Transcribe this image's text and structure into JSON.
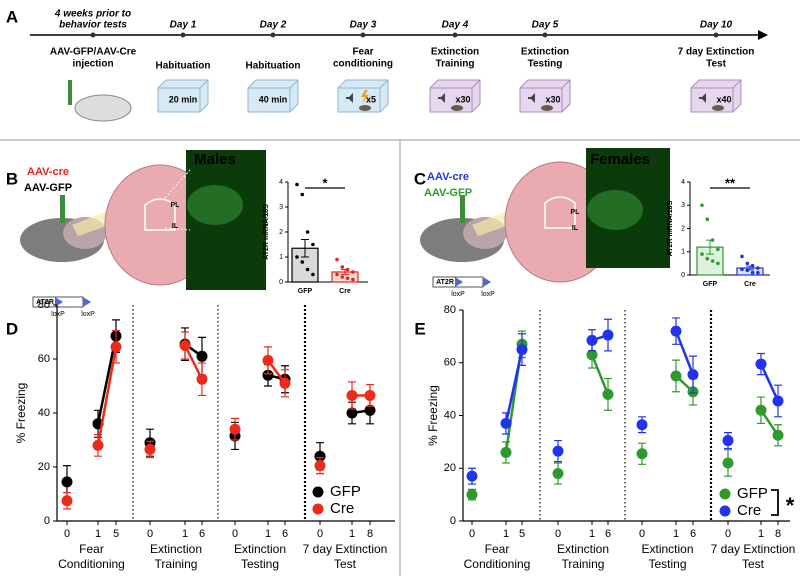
{
  "panel_labels": [
    "A",
    "B",
    "C",
    "D",
    "E"
  ],
  "timeline": {
    "events": [
      {
        "day": [
          "4 weeks prior to",
          "behavior tests"
        ],
        "label": [
          "AAV-GFP/AAV-Cre",
          "injection"
        ]
      },
      {
        "day": [
          "Day 1"
        ],
        "label": [
          "Habituation"
        ],
        "box": "20 min"
      },
      {
        "day": [
          "Day 2"
        ],
        "label": [
          "Habituation"
        ],
        "box": "40 min"
      },
      {
        "day": [
          "Day 3"
        ],
        "label": [
          "Fear",
          "conditioning"
        ],
        "box": "x5"
      },
      {
        "day": [
          "Day 4"
        ],
        "label": [
          "Extinction",
          "Training"
        ],
        "box": "x30"
      },
      {
        "day": [
          "Day 5"
        ],
        "label": [
          "Extinction",
          "Testing"
        ],
        "box": "x30"
      },
      {
        "day": [
          "Day 10"
        ],
        "label": [
          "7 day Extinction",
          "Test"
        ],
        "box": "x40"
      }
    ]
  },
  "sections": [
    {
      "title": "Males",
      "legend": [
        {
          "text": "AAV-cre",
          "color": "#e8221c"
        },
        {
          "text": "AAV-GFP",
          "color": "#000000"
        }
      ],
      "regions": [
        "PL",
        "IL"
      ],
      "construct": [
        "AT2R",
        "loxP",
        "loxP"
      ]
    },
    {
      "title": "Females",
      "legend": [
        {
          "text": "AAV-cre",
          "color": "#2233dd"
        },
        {
          "text": "AAV-GFP",
          "color": "#2e9a2e"
        }
      ],
      "regions": [
        "PL",
        "IL"
      ],
      "construct": [
        "AT2R",
        "loxP",
        "loxP"
      ]
    }
  ],
  "chart_data": [
    {
      "type": "bar",
      "ylabel": "AT2R mRNA/18S",
      "categories": [
        "GFP",
        "Cre"
      ],
      "values": [
        1.35,
        0.4
      ],
      "errors": [
        0.35,
        0.1
      ],
      "colors": [
        "#000000",
        "#e8221c"
      ],
      "points": [
        [
          3.9,
          3.5,
          2.0,
          1.5,
          1.0,
          0.8,
          0.5,
          0.3
        ],
        [
          0.9,
          0.6,
          0.5,
          0.4,
          0.3,
          0.2,
          0.15,
          0.1
        ]
      ],
      "ylim": [
        0,
        4
      ],
      "yticks": [
        0,
        1,
        2,
        3,
        4
      ],
      "annotation": "*"
    },
    {
      "type": "bar",
      "ylabel": "AT2R mRNA/18S",
      "categories": [
        "GFP",
        "Cre"
      ],
      "values": [
        1.2,
        0.3
      ],
      "errors": [
        0.3,
        0.08
      ],
      "colors": [
        "#2e9a2e",
        "#2233dd"
      ],
      "points": [
        [
          3.0,
          2.4,
          1.5,
          1.1,
          0.9,
          0.7,
          0.6,
          0.5
        ],
        [
          0.8,
          0.5,
          0.4,
          0.3,
          0.25,
          0.2,
          0.1,
          0.1
        ]
      ],
      "ylim": [
        0,
        4
      ],
      "yticks": [
        0,
        1,
        2,
        3,
        4
      ],
      "annotation": "**"
    },
    {
      "type": "line",
      "ylabel": "% Freezing",
      "ylim": [
        0,
        80
      ],
      "yticks": [
        0,
        20,
        40,
        60,
        80
      ],
      "legend": "lower right",
      "groups": [
        {
          "label": [
            "Fear",
            "Conditioning"
          ],
          "categories": [
            0,
            1,
            5
          ]
        },
        {
          "label": [
            "Extinction",
            "Training"
          ],
          "categories": [
            0,
            1,
            6
          ]
        },
        {
          "label": [
            "Extinction",
            "Testing"
          ],
          "categories": [
            0,
            1,
            6
          ]
        },
        {
          "label": [
            "7 day Extinction",
            "Test"
          ],
          "categories": [
            0,
            1,
            8
          ]
        }
      ],
      "series": [
        {
          "name": "GFP",
          "color": "#000000",
          "values": [
            [
              14.5,
              36,
              68.5
            ],
            [
              29,
              65.5,
              61
            ],
            [
              31.5,
              54,
              52.5
            ],
            [
              24,
              40,
              41
            ]
          ],
          "errors": [
            [
              6,
              5,
              6
            ],
            [
              5,
              6,
              7
            ],
            [
              5,
              4,
              5
            ],
            [
              5,
              4,
              5
            ]
          ]
        },
        {
          "name": "Cre",
          "color": "#ee2a1b",
          "values": [
            [
              7.5,
              28,
              64.5
            ],
            [
              26.5,
              65,
              52.5
            ],
            [
              34,
              59.5,
              51
            ],
            [
              20.5,
              46.5,
              46.5
            ]
          ],
          "errors": [
            [
              3,
              4,
              6
            ],
            [
              3,
              5,
              6
            ],
            [
              4,
              5,
              5
            ],
            [
              3,
              5,
              4
            ]
          ]
        }
      ]
    },
    {
      "type": "line",
      "ylabel": "% Freezing",
      "ylim": [
        0,
        80
      ],
      "yticks": [
        0,
        20,
        40,
        60,
        80
      ],
      "legend": "lower right",
      "annotation": "*",
      "groups": [
        {
          "label": [
            "Fear",
            "Conditioning"
          ],
          "categories": [
            0,
            1,
            5
          ]
        },
        {
          "label": [
            "Extinction",
            "Training"
          ],
          "categories": [
            0,
            1,
            6
          ]
        },
        {
          "label": [
            "Extinction",
            "Testing"
          ],
          "categories": [
            0,
            1,
            6
          ]
        },
        {
          "label": [
            "7 day Extinction",
            "Test"
          ],
          "categories": [
            0,
            1,
            8
          ]
        }
      ],
      "series": [
        {
          "name": "GFP",
          "color": "#2e9a2e",
          "values": [
            [
              10,
              26,
              67
            ],
            [
              18,
              63,
              48
            ],
            [
              25.5,
              55,
              49
            ],
            [
              22,
              42,
              32.5
            ]
          ],
          "errors": [
            [
              2,
              4,
              5
            ],
            [
              4,
              5,
              6
            ],
            [
              4,
              6,
              5
            ],
            [
              5,
              5,
              4
            ]
          ]
        },
        {
          "name": "Cre",
          "color": "#2233ee",
          "values": [
            [
              17,
              37,
              65
            ],
            [
              26.5,
              68.5,
              70.5
            ],
            [
              36.5,
              72,
              55.5
            ],
            [
              30.5,
              59.5,
              45.5
            ]
          ],
          "errors": [
            [
              3,
              4,
              6
            ],
            [
              4,
              4,
              6
            ],
            [
              3,
              5,
              7
            ],
            [
              3,
              4,
              6
            ]
          ]
        }
      ]
    }
  ]
}
